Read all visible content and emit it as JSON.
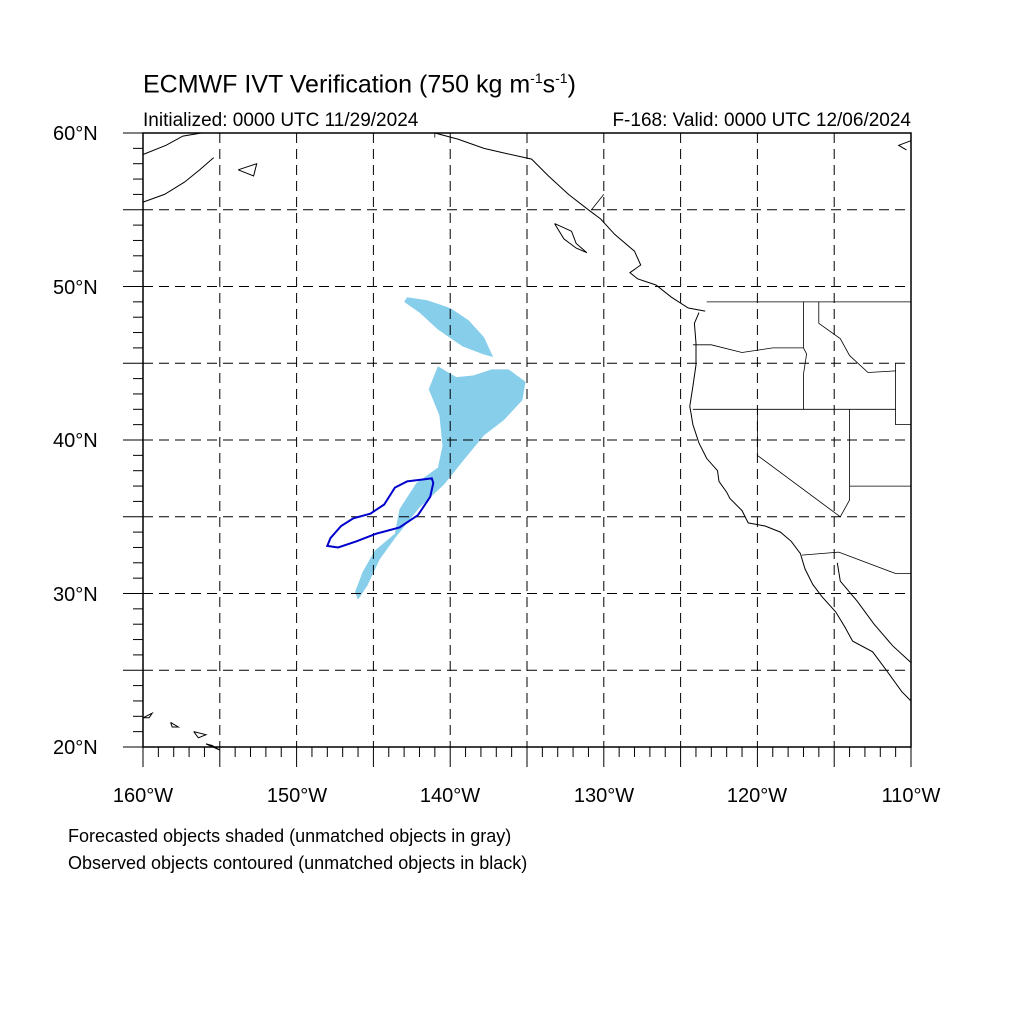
{
  "title": {
    "main_prefix": "ECMWF IVT Verification (750 kg m",
    "exp1": "-1",
    "mid": "s",
    "exp2": "-1",
    "suffix": ")"
  },
  "initialized": "Initialized: 0000 UTC 11/29/2024",
  "valid": "F-168: Valid: 0000 UTC 12/06/2024",
  "lat_labels": [
    "60°N",
    "50°N",
    "40°N",
    "30°N",
    "20°N"
  ],
  "lon_labels": [
    "160°W",
    "150°W",
    "140°W",
    "130°W",
    "120°W",
    "110°W"
  ],
  "notes": [
    "Forecasted objects shaded (unmatched objects in gray)",
    "Observed objects contoured (unmatched objects in black)"
  ],
  "map": {
    "lon_range": [
      -160,
      -110
    ],
    "lat_range": [
      20,
      60
    ],
    "grid_lon": [
      -155,
      -150,
      -145,
      -140,
      -135,
      -130,
      -125,
      -120,
      -115
    ],
    "grid_lat": [
      25,
      30,
      35,
      40,
      45,
      50,
      55
    ],
    "forecast_color": "#87ceeb",
    "observed_color": "#0000cd",
    "forecast_objects": [
      [
        [
          -142.8,
          49.3
        ],
        [
          -141.5,
          49.1
        ],
        [
          -140.0,
          48.6
        ],
        [
          -138.8,
          47.8
        ],
        [
          -137.8,
          46.7
        ],
        [
          -137.2,
          45.4
        ],
        [
          -137.9,
          45.6
        ],
        [
          -139.2,
          46.1
        ],
        [
          -140.8,
          47.2
        ],
        [
          -142.0,
          48.3
        ],
        [
          -143.0,
          49.0
        ]
      ],
      [
        [
          -140.8,
          44.8
        ],
        [
          -139.6,
          44.1
        ],
        [
          -138.5,
          44.2
        ],
        [
          -137.3,
          44.6
        ],
        [
          -136.2,
          44.6
        ],
        [
          -135.1,
          43.8
        ],
        [
          -135.3,
          42.6
        ],
        [
          -136.5,
          41.3
        ],
        [
          -137.8,
          40.3
        ],
        [
          -139.2,
          38.6
        ],
        [
          -140.4,
          37.1
        ],
        [
          -142.0,
          35.6
        ],
        [
          -143.6,
          33.6
        ],
        [
          -144.6,
          32.2
        ],
        [
          -145.4,
          30.5
        ],
        [
          -146.0,
          29.6
        ],
        [
          -146.2,
          30.1
        ],
        [
          -145.7,
          31.4
        ],
        [
          -144.9,
          32.8
        ],
        [
          -143.6,
          33.9
        ],
        [
          -143.3,
          35.5
        ],
        [
          -142.2,
          37.2
        ],
        [
          -140.8,
          38.2
        ],
        [
          -140.5,
          39.6
        ],
        [
          -140.7,
          41.6
        ],
        [
          -141.4,
          43.3
        ]
      ]
    ],
    "observed_objects": [
      [
        [
          -141.2,
          37.5
        ],
        [
          -142.0,
          37.4
        ],
        [
          -142.8,
          37.3
        ],
        [
          -143.6,
          36.9
        ],
        [
          -144.3,
          35.8
        ],
        [
          -145.2,
          35.2
        ],
        [
          -146.3,
          34.9
        ],
        [
          -147.1,
          34.4
        ],
        [
          -147.8,
          33.6
        ],
        [
          -148.0,
          33.1
        ],
        [
          -147.3,
          33.0
        ],
        [
          -146.1,
          33.4
        ],
        [
          -144.8,
          33.9
        ],
        [
          -143.3,
          34.3
        ],
        [
          -142.1,
          35.1
        ],
        [
          -141.3,
          36.3
        ],
        [
          -141.1,
          37.2
        ]
      ]
    ],
    "coastlines": [
      [
        [
          -123.8,
          48.3
        ],
        [
          -124.1,
          47.6
        ],
        [
          -124.0,
          46.3
        ],
        [
          -124.0,
          44.9
        ],
        [
          -124.2,
          43.5
        ],
        [
          -124.4,
          42.2
        ],
        [
          -124.2,
          41.0
        ],
        [
          -123.8,
          39.8
        ],
        [
          -123.3,
          38.8
        ],
        [
          -122.6,
          38.0
        ],
        [
          -122.5,
          37.3
        ],
        [
          -122.0,
          36.6
        ],
        [
          -121.8,
          36.2
        ],
        [
          -121.0,
          35.4
        ],
        [
          -120.6,
          34.6
        ],
        [
          -119.5,
          34.4
        ],
        [
          -118.5,
          34.0
        ],
        [
          -117.8,
          33.4
        ],
        [
          -117.2,
          32.6
        ],
        [
          -116.9,
          31.6
        ],
        [
          -116.4,
          30.6
        ],
        [
          -115.8,
          29.8
        ],
        [
          -114.9,
          28.8
        ],
        [
          -114.3,
          27.8
        ],
        [
          -113.8,
          26.9
        ],
        [
          -112.5,
          26.2
        ],
        [
          -111.6,
          25.0
        ],
        [
          -110.6,
          23.6
        ],
        [
          -110.0,
          23.0
        ]
      ],
      [
        [
          -114.8,
          32.0
        ],
        [
          -114.6,
          30.8
        ],
        [
          -113.5,
          29.5
        ],
        [
          -112.4,
          28.0
        ],
        [
          -111.2,
          26.6
        ],
        [
          -110.0,
          25.5
        ]
      ],
      [
        [
          -123.4,
          48.4
        ],
        [
          -124.5,
          48.6
        ],
        [
          -125.6,
          49.3
        ],
        [
          -126.6,
          50.1
        ],
        [
          -127.8,
          50.5
        ],
        [
          -128.3,
          50.9
        ],
        [
          -127.6,
          51.4
        ],
        [
          -128.0,
          52.3
        ],
        [
          -129.3,
          53.4
        ],
        [
          -130.2,
          54.4
        ],
        [
          -131.0,
          55.0
        ],
        [
          -132.3,
          56.0
        ],
        [
          -133.6,
          57.2
        ],
        [
          -134.7,
          58.3
        ],
        [
          -136.5,
          58.7
        ],
        [
          -137.8,
          59.0
        ],
        [
          -139.5,
          59.6
        ],
        [
          -141.0,
          60.0
        ]
      ],
      [
        [
          -133.2,
          54.1
        ],
        [
          -132.1,
          53.6
        ],
        [
          -131.8,
          52.8
        ],
        [
          -131.1,
          52.2
        ],
        [
          -131.8,
          52.5
        ],
        [
          -132.6,
          53.1
        ],
        [
          -133.2,
          54.1
        ]
      ],
      [
        [
          -160.0,
          58.6
        ],
        [
          -158.5,
          59.2
        ],
        [
          -157.4,
          59.8
        ],
        [
          -156.2,
          60.0
        ]
      ],
      [
        [
          -160.0,
          55.5
        ],
        [
          -158.6,
          56.0
        ],
        [
          -157.3,
          56.8
        ],
        [
          -156.3,
          57.6
        ],
        [
          -155.4,
          58.4
        ]
      ],
      [
        [
          -153.8,
          57.6
        ],
        [
          -152.6,
          58.0
        ],
        [
          -152.8,
          57.2
        ],
        [
          -153.8,
          57.6
        ]
      ],
      [
        [
          -160.0,
          21.9
        ],
        [
          -159.4,
          22.2
        ],
        [
          -159.6,
          21.9
        ],
        [
          -160.0,
          21.9
        ]
      ],
      [
        [
          -158.2,
          21.6
        ],
        [
          -157.7,
          21.3
        ],
        [
          -158.1,
          21.3
        ],
        [
          -158.2,
          21.6
        ]
      ],
      [
        [
          -156.7,
          21.0
        ],
        [
          -155.9,
          20.8
        ],
        [
          -156.4,
          20.6
        ],
        [
          -156.7,
          21.0
        ]
      ],
      [
        [
          -155.9,
          20.2
        ],
        [
          -155.0,
          19.8
        ],
        [
          -155.5,
          20.1
        ],
        [
          -155.9,
          20.2
        ]
      ],
      [
        [
          -110.0,
          59.5
        ],
        [
          -110.8,
          59.2
        ],
        [
          -110.3,
          58.9
        ]
      ]
    ],
    "borders": [
      [
        [
          -123.3,
          49.0
        ],
        [
          -110.0,
          49.0
        ]
      ],
      [
        [
          -124.2,
          46.2
        ],
        [
          -123.0,
          46.2
        ],
        [
          -121.0,
          45.7
        ],
        [
          -119.0,
          46.0
        ],
        [
          -117.0,
          46.0
        ]
      ],
      [
        [
          -124.2,
          42.0
        ],
        [
          -117.0,
          42.0
        ],
        [
          -111.0,
          42.0
        ]
      ],
      [
        [
          -120.0,
          42.0
        ],
        [
          -120.0,
          39.0
        ],
        [
          -114.6,
          35.0
        ]
      ],
      [
        [
          -117.0,
          49.0
        ],
        [
          -117.0,
          46.0
        ],
        [
          -116.8,
          45.6
        ],
        [
          -117.0,
          44.3
        ],
        [
          -117.0,
          42.0
        ]
      ],
      [
        [
          -116.0,
          49.0
        ],
        [
          -116.0,
          47.6
        ],
        [
          -114.6,
          46.6
        ],
        [
          -114.0,
          45.5
        ],
        [
          -112.8,
          44.4
        ],
        [
          -111.0,
          44.5
        ]
      ],
      [
        [
          -114.0,
          42.0
        ],
        [
          -114.0,
          36.1
        ],
        [
          -114.6,
          35.0
        ]
      ],
      [
        [
          -111.0,
          45.0
        ],
        [
          -111.0,
          41.0
        ],
        [
          -110.0,
          41.0
        ]
      ],
      [
        [
          -114.0,
          37.0
        ],
        [
          -110.0,
          37.0
        ]
      ],
      [
        [
          -117.1,
          32.5
        ],
        [
          -114.7,
          32.7
        ],
        [
          -111.0,
          31.3
        ],
        [
          -110.0,
          31.3
        ]
      ],
      [
        [
          -141.0,
          60.0
        ],
        [
          -141.0,
          59.7
        ]
      ],
      [
        [
          -130.0,
          56.0
        ],
        [
          -130.8,
          55.0
        ]
      ]
    ]
  }
}
